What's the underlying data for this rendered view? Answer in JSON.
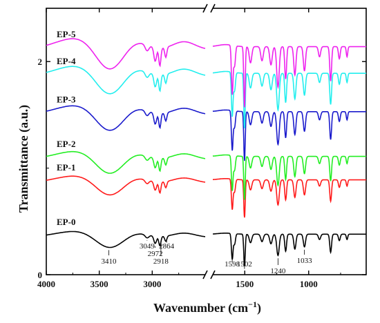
{
  "chart_data": {
    "type": "line",
    "xlabel": "Wavenumber (cm",
    "xlabel_sup": "−1",
    "xlabel_end": ")",
    "ylabel": "Transmittance (a.u.)",
    "xlim": [
      4000,
      550
    ],
    "ylim": [
      0,
      2.5
    ],
    "x_break": [
      2500,
      1750
    ],
    "x_ticks": [
      4000,
      3500,
      3000,
      1500,
      1000
    ],
    "x_tick_labels": [
      "4000",
      "3500",
      "3000",
      "1500",
      "1000"
    ],
    "y_ticks": [
      0,
      2
    ],
    "y_tick_labels": [
      "0",
      "2"
    ],
    "grid": false,
    "series": [
      {
        "name": "EP-0",
        "color": "#000000",
        "offset": 0.35
      },
      {
        "name": "EP-1",
        "color": "#ff1a1a",
        "offset": 0.86
      },
      {
        "name": "EP-2",
        "color": "#22ee22",
        "offset": 1.08
      },
      {
        "name": "EP-3",
        "color": "#1a1acc",
        "offset": 1.5
      },
      {
        "name": "EP-4",
        "color": "#22eeee",
        "offset": 1.86
      },
      {
        "name": "EP-5",
        "color": "#ee22ee",
        "offset": 2.11
      }
    ],
    "peaks": [
      {
        "x": 3410,
        "label": "3410"
      },
      {
        "x": 3049,
        "label": "3049"
      },
      {
        "x": 2972,
        "label": "2972"
      },
      {
        "x": 2918,
        "label": "2918"
      },
      {
        "x": 2864,
        "label": "2864"
      },
      {
        "x": 1598,
        "label": "1598"
      },
      {
        "x": 1502,
        "label": "1502"
      },
      {
        "x": 1240,
        "label": "1240"
      },
      {
        "x": 1033,
        "label": "1033"
      }
    ]
  }
}
